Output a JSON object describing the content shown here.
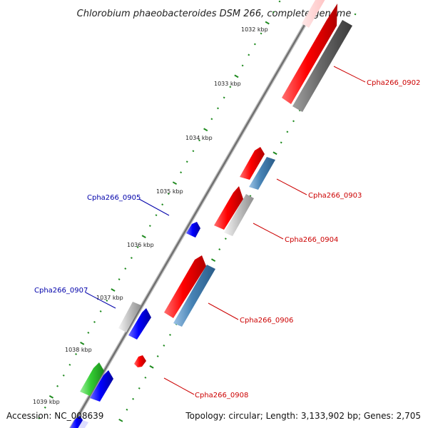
{
  "title": "Chlorobium phaeobacteroides DSM 266, complete genome",
  "footer": {
    "accession": "Accession: NC_008639",
    "summary": "Topology: circular; Length: 3,133,902 bp; Genes: 2,705"
  },
  "ticks": [
    "1032 kbp",
    "1033 kbp",
    "1034 kbp",
    "1035 kbp",
    "1036 kbp",
    "1037 kbp",
    "1038 kbp",
    "1039 kbp"
  ],
  "genes": [
    {
      "label": "Cpha266_0902",
      "strand": "forward",
      "color": "#cc0000"
    },
    {
      "label": "Cpha266_0903",
      "strand": "forward",
      "color": "#cc0000"
    },
    {
      "label": "Cpha266_0904",
      "strand": "forward",
      "color": "#cc0000"
    },
    {
      "label": "Cpha266_0905",
      "strand": "reverse",
      "color": "#0000aa"
    },
    {
      "label": "Cpha266_0906",
      "strand": "forward",
      "color": "#cc0000"
    },
    {
      "label": "Cpha266_0907",
      "strand": "reverse",
      "color": "#0000aa"
    },
    {
      "label": "Cpha266_0908",
      "strand": "forward",
      "color": "#cc0000"
    }
  ],
  "colors": {
    "forward_cds": "#e00000",
    "reverse_cds": "#0000e0",
    "rna": "#3fbf3f",
    "blast_gray": "#bdbdbd",
    "blast_steel": "#4a86b8",
    "blast_dark": "#666666",
    "backbone": "#8a8a8a",
    "tick_dot": "#1e8a1e"
  }
}
